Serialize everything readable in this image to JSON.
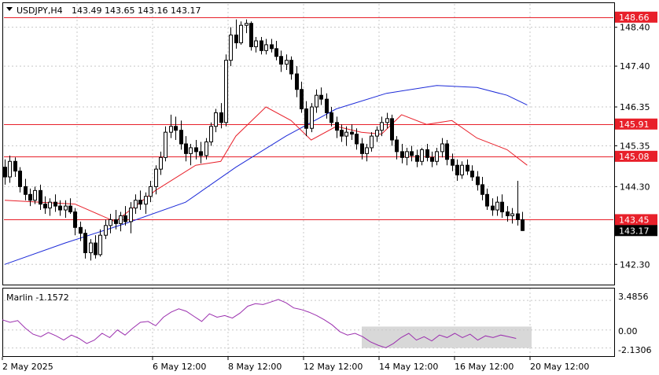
{
  "header": {
    "symbol": "USDJPY,H4",
    "ohlc": "143.49 143.65 143.16 143.17"
  },
  "indicator": {
    "label": "Marlin -1.1572",
    "levels": [
      "3.4856",
      "0.00",
      "-2.1306"
    ]
  },
  "colors": {
    "up_candle": "#ffffff",
    "down_candle": "#000000",
    "fast_ma": "#e8202a",
    "slow_ma": "#1c2ad8",
    "level_line": "#e8202a",
    "level_tag": "#e8202a",
    "price_tag": "#000000",
    "oscillator": "#9b2fae",
    "oscillator_zone": "#d8d8d8"
  },
  "chart_data": {
    "type": "candlestick",
    "y_ticks": [
      148.4,
      147.4,
      146.35,
      145.35,
      144.3,
      142.3
    ],
    "ylim": [
      141.8,
      149.0
    ],
    "x_labels": [
      "2 May 2025",
      "6 May 12:00",
      "8 May 12:00",
      "12 May 12:00",
      "14 May 12:00",
      "16 May 12:00",
      "20 May 12:00"
    ],
    "levels": [
      {
        "value": 148.66,
        "label": "148.66"
      },
      {
        "value": 145.91,
        "label": "145.91"
      },
      {
        "value": 145.08,
        "label": "145.08"
      },
      {
        "value": 143.45,
        "label": "143.45"
      }
    ],
    "current_price": {
      "value": 143.17,
      "label": "143.17"
    },
    "candles": [
      [
        144.8,
        145.0,
        144.35,
        144.55
      ],
      [
        144.55,
        145.1,
        144.4,
        144.95
      ],
      [
        144.95,
        145.05,
        144.55,
        144.7
      ],
      [
        144.7,
        144.8,
        144.15,
        144.3
      ],
      [
        144.3,
        144.5,
        143.95,
        144.1
      ],
      [
        144.1,
        144.25,
        143.8,
        143.95
      ],
      [
        143.95,
        144.3,
        143.85,
        144.2
      ],
      [
        144.2,
        144.35,
        143.7,
        143.85
      ],
      [
        143.85,
        144.05,
        143.6,
        143.75
      ],
      [
        143.75,
        144.0,
        143.55,
        143.9
      ],
      [
        143.9,
        144.1,
        143.65,
        143.8
      ],
      [
        143.8,
        143.95,
        143.55,
        143.7
      ],
      [
        143.7,
        143.95,
        143.5,
        143.8
      ],
      [
        143.8,
        144.0,
        143.6,
        143.65
      ],
      [
        143.65,
        143.75,
        143.05,
        143.25
      ],
      [
        143.25,
        143.4,
        142.9,
        143.1
      ],
      [
        143.1,
        143.2,
        142.45,
        142.6
      ],
      [
        142.6,
        142.95,
        142.4,
        142.85
      ],
      [
        142.85,
        143.05,
        142.45,
        142.55
      ],
      [
        142.55,
        143.2,
        142.5,
        143.05
      ],
      [
        143.05,
        143.45,
        142.95,
        143.3
      ],
      [
        143.3,
        143.6,
        143.1,
        143.45
      ],
      [
        143.45,
        143.7,
        143.2,
        143.35
      ],
      [
        143.35,
        143.65,
        143.15,
        143.55
      ],
      [
        143.55,
        143.8,
        143.3,
        143.4
      ],
      [
        143.4,
        143.9,
        143.1,
        143.75
      ],
      [
        143.75,
        144.1,
        143.6,
        143.95
      ],
      [
        143.95,
        144.2,
        143.7,
        143.85
      ],
      [
        143.85,
        144.15,
        143.6,
        144.05
      ],
      [
        144.05,
        144.45,
        143.9,
        144.3
      ],
      [
        144.3,
        144.85,
        144.1,
        144.75
      ],
      [
        144.75,
        145.2,
        144.6,
        145.05
      ],
      [
        145.05,
        145.85,
        144.95,
        145.7
      ],
      [
        145.7,
        146.15,
        145.55,
        145.85
      ],
      [
        145.85,
        146.1,
        145.5,
        145.75
      ],
      [
        145.75,
        146.0,
        145.25,
        145.4
      ],
      [
        145.4,
        145.6,
        144.95,
        145.15
      ],
      [
        145.15,
        145.4,
        144.85,
        145.3
      ],
      [
        145.3,
        145.5,
        145.0,
        145.2
      ],
      [
        145.2,
        145.45,
        144.9,
        145.1
      ],
      [
        145.1,
        145.55,
        145.0,
        145.45
      ],
      [
        145.45,
        145.95,
        145.35,
        145.85
      ],
      [
        145.85,
        146.3,
        145.7,
        146.2
      ],
      [
        146.2,
        146.45,
        145.8,
        145.95
      ],
      [
        145.95,
        147.7,
        145.85,
        147.55
      ],
      [
        147.55,
        148.4,
        147.4,
        148.2
      ],
      [
        148.2,
        148.6,
        147.85,
        148.0
      ],
      [
        148.0,
        148.55,
        147.95,
        148.45
      ],
      [
        148.45,
        148.6,
        148.25,
        148.5
      ],
      [
        148.5,
        148.55,
        147.8,
        147.9
      ],
      [
        147.9,
        148.15,
        147.75,
        148.05
      ],
      [
        148.05,
        148.15,
        147.7,
        147.8
      ],
      [
        147.8,
        148.1,
        147.7,
        147.95
      ],
      [
        147.95,
        148.1,
        147.75,
        147.85
      ],
      [
        147.85,
        148.05,
        147.55,
        147.65
      ],
      [
        147.65,
        147.8,
        147.25,
        147.45
      ],
      [
        147.45,
        147.7,
        147.3,
        147.55
      ],
      [
        147.55,
        147.65,
        147.05,
        147.2
      ],
      [
        147.2,
        147.4,
        146.6,
        146.8
      ],
      [
        146.8,
        147.0,
        146.2,
        146.3
      ],
      [
        146.3,
        146.5,
        145.6,
        145.8
      ],
      [
        145.8,
        146.45,
        145.7,
        146.35
      ],
      [
        146.35,
        146.8,
        146.2,
        146.65
      ],
      [
        146.65,
        146.85,
        146.4,
        146.55
      ],
      [
        146.55,
        146.7,
        146.05,
        146.2
      ],
      [
        146.2,
        146.35,
        145.85,
        145.95
      ],
      [
        145.95,
        146.1,
        145.55,
        145.75
      ],
      [
        145.75,
        145.9,
        145.45,
        145.6
      ],
      [
        145.6,
        145.85,
        145.35,
        145.7
      ],
      [
        145.7,
        145.9,
        145.5,
        145.65
      ],
      [
        145.65,
        145.8,
        145.25,
        145.4
      ],
      [
        145.4,
        145.55,
        145.0,
        145.15
      ],
      [
        145.15,
        145.4,
        144.95,
        145.3
      ],
      [
        145.3,
        145.7,
        145.2,
        145.6
      ],
      [
        145.6,
        145.85,
        145.45,
        145.75
      ],
      [
        145.75,
        146.1,
        145.6,
        145.95
      ],
      [
        145.95,
        146.2,
        145.8,
        146.05
      ],
      [
        146.05,
        146.15,
        145.35,
        145.5
      ],
      [
        145.5,
        145.6,
        145.0,
        145.2
      ],
      [
        145.2,
        145.4,
        144.9,
        145.05
      ],
      [
        145.05,
        145.3,
        144.85,
        145.2
      ],
      [
        145.2,
        145.35,
        144.95,
        145.1
      ],
      [
        145.1,
        145.25,
        144.8,
        144.95
      ],
      [
        144.95,
        145.3,
        144.85,
        145.25
      ],
      [
        145.25,
        145.4,
        144.95,
        145.05
      ],
      [
        145.05,
        145.2,
        144.8,
        144.95
      ],
      [
        144.95,
        145.3,
        144.85,
        145.2
      ],
      [
        145.2,
        145.55,
        145.05,
        145.4
      ],
      [
        145.4,
        145.5,
        144.85,
        145.0
      ],
      [
        145.0,
        145.15,
        144.7,
        144.85
      ],
      [
        144.85,
        145.0,
        144.45,
        144.6
      ],
      [
        144.6,
        144.95,
        144.5,
        144.85
      ],
      [
        144.85,
        145.0,
        144.6,
        144.7
      ],
      [
        144.7,
        144.85,
        144.45,
        144.55
      ],
      [
        144.55,
        144.7,
        144.2,
        144.35
      ],
      [
        144.35,
        144.55,
        143.95,
        144.1
      ],
      [
        144.1,
        144.25,
        143.7,
        143.8
      ],
      [
        143.8,
        144.0,
        143.55,
        143.7
      ],
      [
        143.7,
        144.05,
        143.55,
        143.9
      ],
      [
        143.9,
        144.1,
        143.5,
        143.65
      ],
      [
        143.65,
        143.8,
        143.4,
        143.55
      ],
      [
        143.55,
        143.75,
        143.35,
        143.6
      ],
      [
        143.6,
        144.45,
        143.3,
        143.45
      ],
      [
        143.45,
        143.65,
        143.16,
        143.17
      ]
    ],
    "fast_ma": [
      [
        0,
        143.95
      ],
      [
        14,
        143.85
      ],
      [
        22,
        143.4
      ],
      [
        30,
        144.2
      ],
      [
        38,
        144.85
      ],
      [
        43,
        144.95
      ],
      [
        46,
        145.6
      ],
      [
        52,
        146.35
      ],
      [
        57,
        146.0
      ],
      [
        61,
        145.5
      ],
      [
        66,
        145.85
      ],
      [
        71,
        145.7
      ],
      [
        75,
        145.65
      ],
      [
        79,
        146.15
      ],
      [
        84,
        145.9
      ],
      [
        89,
        146.0
      ],
      [
        94,
        145.55
      ],
      [
        100,
        145.25
      ],
      [
        104,
        144.85
      ]
    ],
    "slow_ma": [
      [
        0,
        142.3
      ],
      [
        12,
        142.85
      ],
      [
        24,
        143.35
      ],
      [
        36,
        143.9
      ],
      [
        46,
        144.8
      ],
      [
        56,
        145.6
      ],
      [
        66,
        146.3
      ],
      [
        76,
        146.7
      ],
      [
        86,
        146.9
      ],
      [
        94,
        146.85
      ],
      [
        100,
        146.65
      ],
      [
        104,
        146.4
      ]
    ],
    "oscillator": {
      "ylim": [
        -3.0,
        4.8
      ],
      "shaded_range": {
        "from": 72,
        "to": 105,
        "y": [
          -2.1306,
          0.4
        ]
      },
      "points": [
        [
          0,
          1.2
        ],
        [
          3,
          0.9
        ],
        [
          6,
          1.1
        ],
        [
          9,
          0.2
        ],
        [
          12,
          -0.5
        ],
        [
          15,
          -0.8
        ],
        [
          18,
          -0.3
        ],
        [
          21,
          -0.7
        ],
        [
          24,
          -1.2
        ],
        [
          27,
          -0.6
        ],
        [
          30,
          -1.0
        ],
        [
          33,
          -1.6
        ],
        [
          36,
          -1.2
        ],
        [
          39,
          -0.4
        ],
        [
          42,
          -0.9
        ],
        [
          45,
          0.0
        ],
        [
          48,
          -0.6
        ],
        [
          51,
          0.2
        ],
        [
          54,
          0.9
        ],
        [
          57,
          1.0
        ],
        [
          60,
          0.5
        ],
        [
          63,
          1.5
        ],
        [
          66,
          2.1
        ],
        [
          69,
          2.5
        ],
        [
          72,
          2.2
        ],
        [
          75,
          1.6
        ],
        [
          78,
          1.0
        ],
        [
          81,
          1.9
        ],
        [
          84,
          1.5
        ],
        [
          87,
          1.7
        ],
        [
          90,
          1.4
        ],
        [
          93,
          2.0
        ],
        [
          96,
          2.8
        ],
        [
          99,
          3.1
        ],
        [
          102,
          3.0
        ],
        [
          105,
          3.3
        ],
        [
          108,
          3.6
        ],
        [
          111,
          3.2
        ],
        [
          114,
          2.6
        ],
        [
          117,
          2.4
        ],
        [
          120,
          2.1
        ],
        [
          123,
          1.7
        ],
        [
          126,
          1.2
        ],
        [
          129,
          0.6
        ],
        [
          132,
          -0.2
        ],
        [
          135,
          -0.6
        ],
        [
          138,
          -0.4
        ],
        [
          141,
          -0.8
        ],
        [
          144,
          -1.4
        ],
        [
          147,
          -1.8
        ],
        [
          150,
          -2.1
        ],
        [
          153,
          -1.6
        ],
        [
          156,
          -0.9
        ],
        [
          159,
          -0.4
        ],
        [
          162,
          -1.2
        ],
        [
          165,
          -0.8
        ],
        [
          168,
          -1.3
        ],
        [
          171,
          -0.6
        ],
        [
          174,
          -0.9
        ],
        [
          177,
          -0.4
        ],
        [
          180,
          -0.9
        ],
        [
          183,
          -0.5
        ],
        [
          186,
          -1.2
        ],
        [
          189,
          -0.7
        ],
        [
          192,
          -0.9
        ],
        [
          195,
          -0.6
        ],
        [
          198,
          -0.8
        ],
        [
          201,
          -1.0
        ]
      ]
    }
  }
}
